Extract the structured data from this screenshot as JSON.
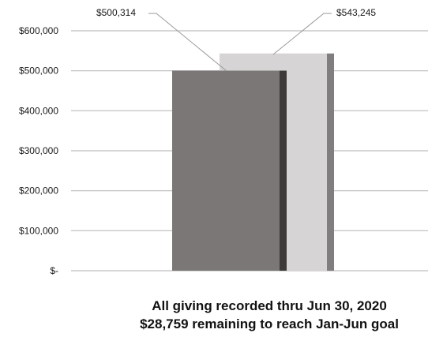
{
  "chart_data": {
    "type": "bar",
    "series": [
      {
        "values": [
          500314
        ],
        "label": "$500,314",
        "colors": {
          "front": "#7b7777",
          "side": "#3e3a3a"
        }
      },
      {
        "values": [
          543245
        ],
        "label": "$543,245",
        "colors": {
          "front": "#d6d4d4",
          "side": "#807e7e"
        }
      }
    ],
    "y_ticks": [
      {
        "value": 600000,
        "label": "$600,000"
      },
      {
        "value": 500000,
        "label": "$500,000"
      },
      {
        "value": 400000,
        "label": "$400,000"
      },
      {
        "value": 300000,
        "label": "$300,000"
      },
      {
        "value": 200000,
        "label": "$200,000"
      },
      {
        "value": 100000,
        "label": "$100,000"
      },
      {
        "value": 0,
        "label": "$-"
      }
    ],
    "ylim": [
      0,
      600000
    ],
    "grid": true,
    "gridline_color": "#bdbdbd"
  },
  "captions": {
    "line1": "All giving recorded thru Jun 30, 2020",
    "line2": "$28,759 remaining to reach Jan-Jun goal"
  }
}
